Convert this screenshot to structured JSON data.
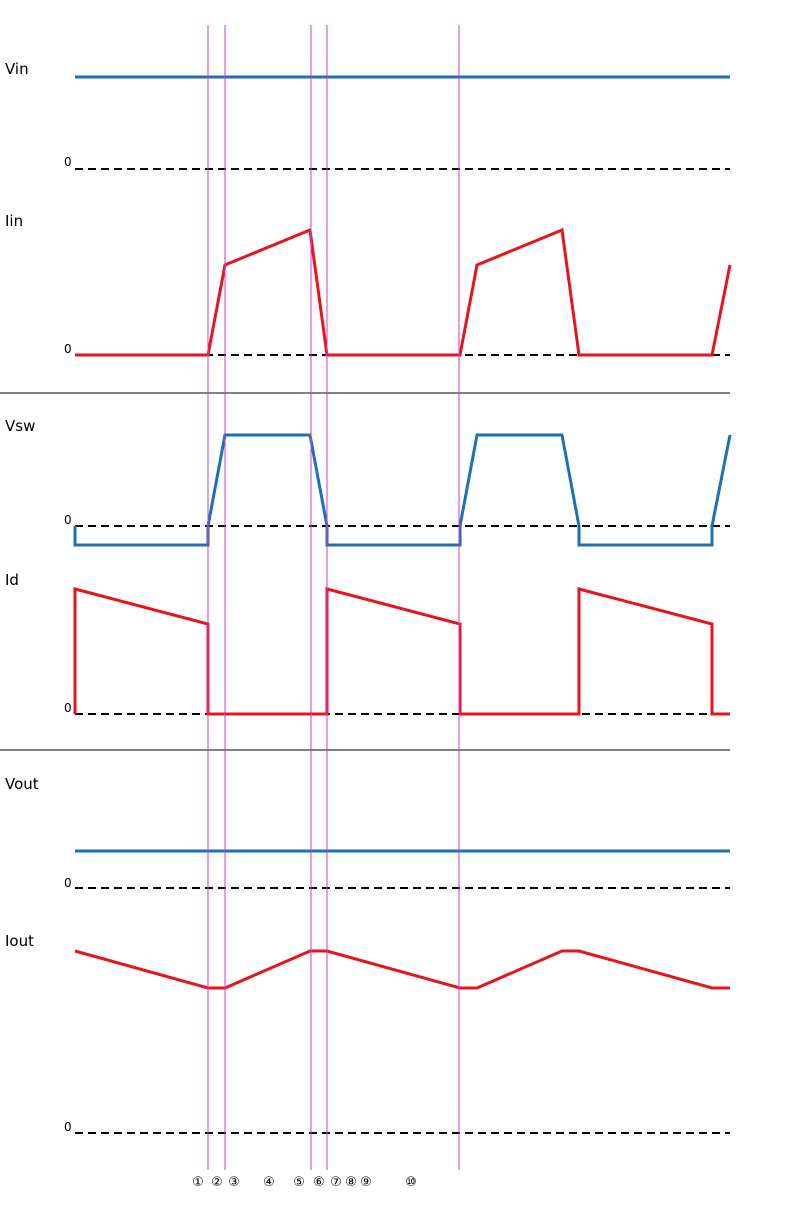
{
  "colors": {
    "voltage": "#1f6fb5",
    "current": "#e8141c",
    "marker": "#d23ad2",
    "baseline": "#000000",
    "separator": "#000000"
  },
  "signals": [
    {
      "key": "vin",
      "label": "Vin",
      "zero_label": "0",
      "kind": "voltage"
    },
    {
      "key": "iin",
      "label": "Iin",
      "zero_label": "0",
      "kind": "current"
    },
    {
      "key": "vsw",
      "label": "Vsw",
      "zero_label": "0",
      "kind": "voltage"
    },
    {
      "key": "id",
      "label": "Id",
      "zero_label": "0",
      "kind": "current"
    },
    {
      "key": "vout",
      "label": "Vout",
      "zero_label": "0",
      "kind": "voltage"
    },
    {
      "key": "iout",
      "label": "Iout",
      "zero_label": "0",
      "kind": "current"
    }
  ],
  "markers": [
    "①",
    "②",
    "③",
    "④",
    "⑤",
    "⑥",
    "⑦",
    "⑧",
    "⑨",
    "⑩"
  ]
}
